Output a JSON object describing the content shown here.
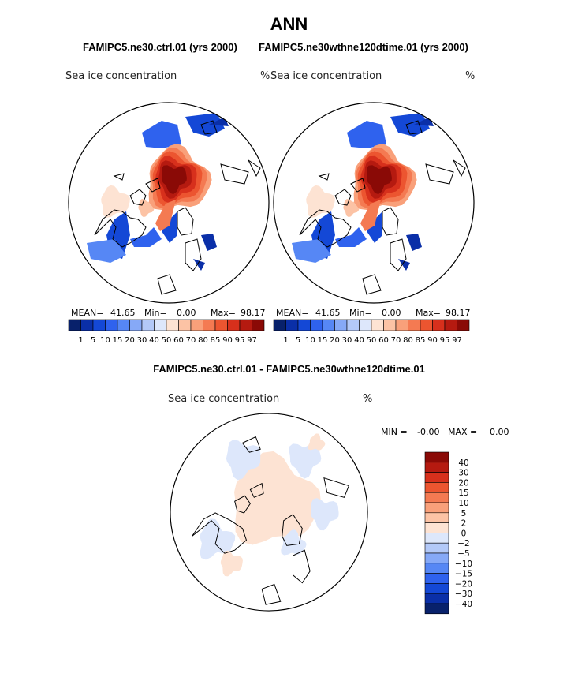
{
  "title": "ANN",
  "panels": [
    {
      "case_title": "FAMIPC5.ne30.ctrl.01 (yrs 2000)",
      "variable": "Sea ice concentration",
      "units": "%",
      "mean_label": "MEAN=",
      "mean": "41.65",
      "min_label": "Min=",
      "min": "0.00",
      "max_label": "Max=",
      "max": "98.17"
    },
    {
      "case_title": "FAMIPC5.ne30wthne120dtime.01 (yrs 2000)",
      "variable": "Sea ice concentration",
      "units": "%",
      "mean_label": "MEAN=",
      "mean": "41.65",
      "min_label": "Min=",
      "min": "0.00",
      "max_label": "Max=",
      "max": "98.17"
    }
  ],
  "diff_panel": {
    "title": "FAMIPC5.ne30.ctrl.01 - FAMIPC5.ne30wthne120dtime.01",
    "variable": "Sea ice concentration",
    "units": "%",
    "min_label": "MIN =",
    "min": "-0.00",
    "max_label": "MAX =",
    "max": "0.00"
  },
  "chart_data": [
    {
      "type": "heatmap",
      "title": "FAMIPC5.ne30.ctrl.01 (yrs 2000)",
      "projection": "north polar stereographic",
      "colorbar": {
        "levels": [
          "1",
          "5",
          "10",
          "15",
          "20",
          "30",
          "40",
          "50",
          "60",
          "70",
          "80",
          "85",
          "90",
          "95",
          "97"
        ],
        "colors": [
          "#08216b",
          "#0a2fa8",
          "#1448d6",
          "#2f62ee",
          "#5687f5",
          "#86a9f7",
          "#b3c9f8",
          "#dde7fb",
          "#fde3d3",
          "#fcc3a5",
          "#f9a07a",
          "#f47a52",
          "#ec5530",
          "#d7301c",
          "#b51a10",
          "#8a0a06"
        ]
      },
      "stats": {
        "mean": 41.65,
        "min": 0.0,
        "max": 98.17
      }
    },
    {
      "type": "heatmap",
      "title": "FAMIPC5.ne30wthne120dtime.01 (yrs 2000)",
      "projection": "north polar stereographic",
      "colorbar": {
        "levels": [
          "1",
          "5",
          "10",
          "15",
          "20",
          "30",
          "40",
          "50",
          "60",
          "70",
          "80",
          "85",
          "90",
          "95",
          "97"
        ],
        "colors": [
          "#08216b",
          "#0a2fa8",
          "#1448d6",
          "#2f62ee",
          "#5687f5",
          "#86a9f7",
          "#b3c9f8",
          "#dde7fb",
          "#fde3d3",
          "#fcc3a5",
          "#f9a07a",
          "#f47a52",
          "#ec5530",
          "#d7301c",
          "#b51a10",
          "#8a0a06"
        ]
      },
      "stats": {
        "mean": 41.65,
        "min": 0.0,
        "max": 98.17
      }
    },
    {
      "type": "heatmap",
      "title": "FAMIPC5.ne30.ctrl.01 - FAMIPC5.ne30wthne120dtime.01",
      "projection": "north polar stereographic",
      "colorbar": {
        "levels": [
          "40",
          "30",
          "20",
          "15",
          "10",
          "5",
          "2",
          "0",
          "−2",
          "−5",
          "−10",
          "−15",
          "−20",
          "−30",
          "−40"
        ],
        "colors": [
          "#8a0a06",
          "#b51a10",
          "#d7301c",
          "#ec5530",
          "#f47a52",
          "#f9a07a",
          "#fcc3a5",
          "#fde3d3",
          "#dde7fb",
          "#b3c9f8",
          "#86a9f7",
          "#5687f5",
          "#2f62ee",
          "#1448d6",
          "#0a2fa8",
          "#08216b"
        ]
      },
      "stats": {
        "min": -0.0,
        "max": 0.0
      }
    }
  ]
}
